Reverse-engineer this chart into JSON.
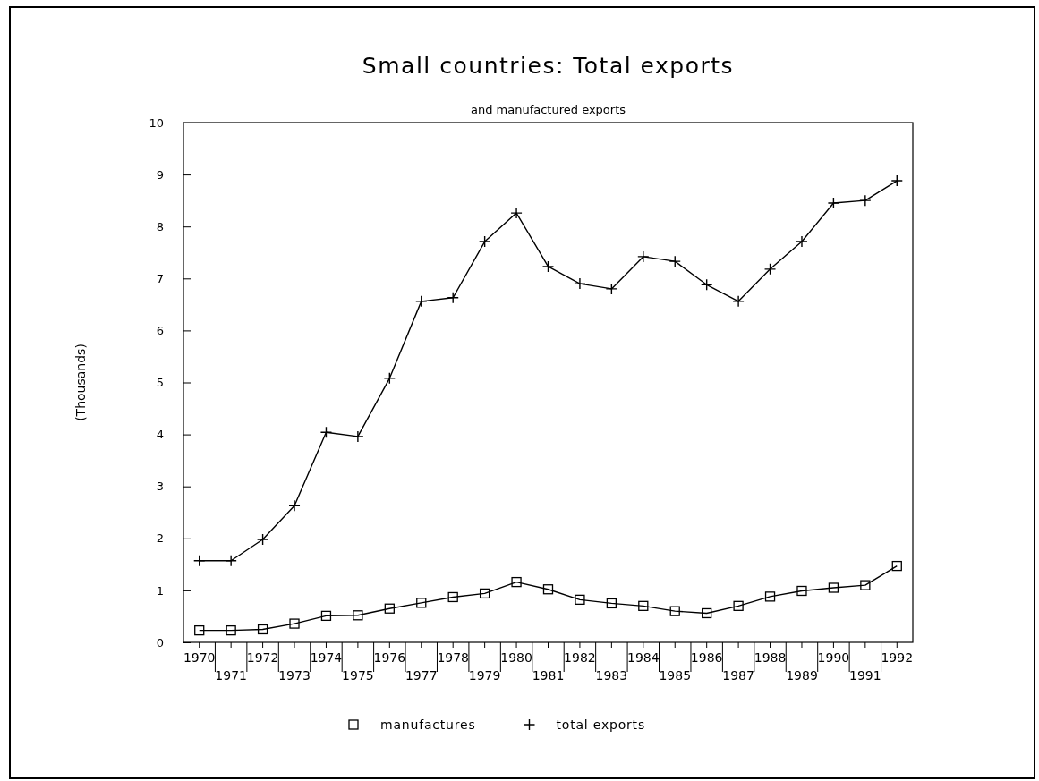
{
  "chart_data": {
    "type": "line",
    "title": "Small countries: Total exports",
    "subtitle": "and manufactured exports",
    "ylabel": "(Thousands)",
    "categories": [
      "1970",
      "1971",
      "1972",
      "1973",
      "1974",
      "1975",
      "1976",
      "1977",
      "1978",
      "1979",
      "1980",
      "1981",
      "1982",
      "1983",
      "1984",
      "1985",
      "1986",
      "1987",
      "1988",
      "1989",
      "1990",
      "1991",
      "1992"
    ],
    "series": [
      {
        "name": "manufactures",
        "color": "#000000",
        "marker": "square",
        "values": [
          0.23,
          0.23,
          0.25,
          0.36,
          0.51,
          0.52,
          0.65,
          0.76,
          0.87,
          0.94,
          1.16,
          1.02,
          0.82,
          0.75,
          0.7,
          0.6,
          0.56,
          0.7,
          0.88,
          0.99,
          1.05,
          1.1,
          1.47
        ]
      },
      {
        "name": "total exports",
        "color": "#000000",
        "marker": "cross",
        "values": [
          1.57,
          1.57,
          1.98,
          2.63,
          4.04,
          3.96,
          5.08,
          6.56,
          6.63,
          7.71,
          8.26,
          7.23,
          6.9,
          6.8,
          7.42,
          7.33,
          6.88,
          6.56,
          7.18,
          7.71,
          8.45,
          8.5,
          8.88
        ]
      }
    ],
    "ylim": [
      0,
      10
    ],
    "yticks": [
      0,
      1,
      2,
      3,
      4,
      5,
      6,
      7,
      8,
      9,
      10
    ],
    "grid": false,
    "legend": "bottom",
    "line_style": "solid"
  }
}
